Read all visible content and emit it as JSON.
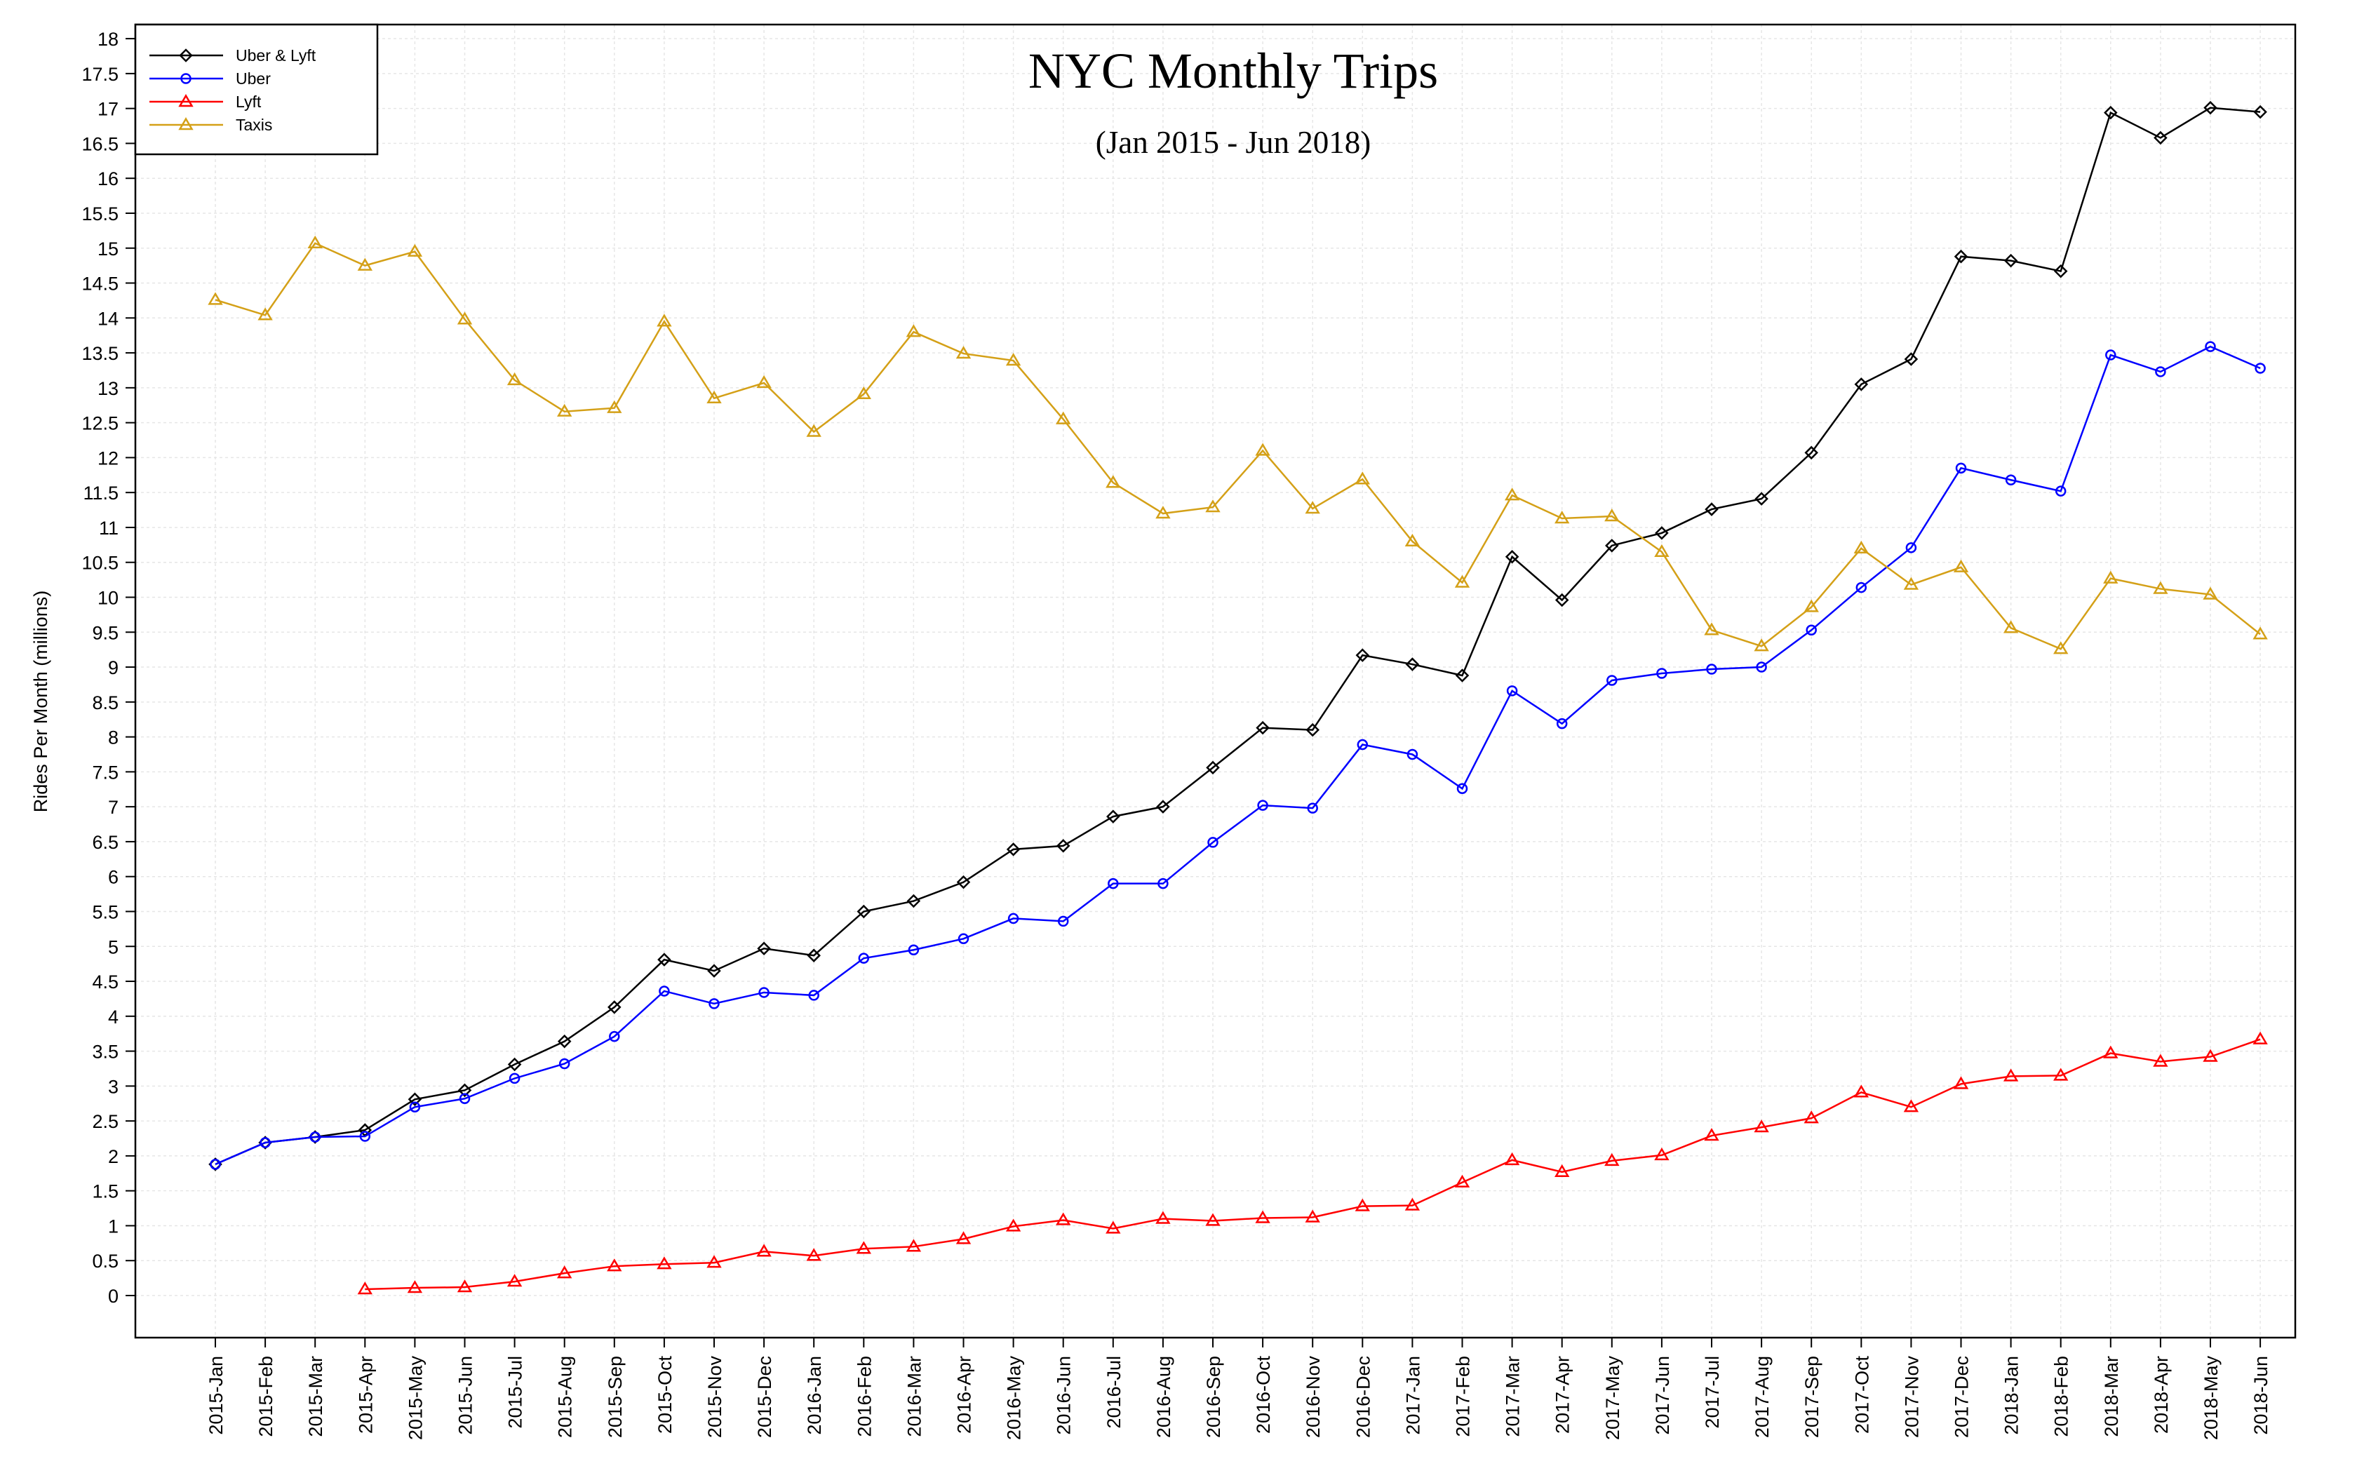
{
  "chart_data": {
    "type": "line",
    "title": "NYC Monthly Trips",
    "subtitle": "(Jan 2015 - Jun 2018)",
    "xlabel": "",
    "ylabel": "Rides Per Month (millions)",
    "ylim": [
      -0.6,
      18.2
    ],
    "yticks": [
      0,
      0.5,
      1,
      1.5,
      2,
      2.5,
      3,
      3.5,
      4,
      4.5,
      5,
      5.5,
      6,
      6.5,
      7,
      7.5,
      8,
      8.5,
      9,
      9.5,
      10,
      10.5,
      11,
      11.5,
      12,
      12.5,
      13,
      13.5,
      14,
      14.5,
      15,
      15.5,
      16,
      16.5,
      17,
      17.5,
      18
    ],
    "grid": true,
    "legend_position": "top-left",
    "categories": [
      "2015-Jan",
      "2015-Feb",
      "2015-Mar",
      "2015-Apr",
      "2015-May",
      "2015-Jun",
      "2015-Jul",
      "2015-Aug",
      "2015-Sep",
      "2015-Oct",
      "2015-Nov",
      "2015-Dec",
      "2016-Jan",
      "2016-Feb",
      "2016-Mar",
      "2016-Apr",
      "2016-May",
      "2016-Jun",
      "2016-Jul",
      "2016-Aug",
      "2016-Sep",
      "2016-Oct",
      "2016-Nov",
      "2016-Dec",
      "2017-Jan",
      "2017-Feb",
      "2017-Mar",
      "2017-Apr",
      "2017-May",
      "2017-Jun",
      "2017-Jul",
      "2017-Aug",
      "2017-Sep",
      "2017-Oct",
      "2017-Nov",
      "2017-Dec",
      "2018-Jan",
      "2018-Feb",
      "2018-Mar",
      "2018-Apr",
      "2018-May",
      "2018-Jun"
    ],
    "series": [
      {
        "name": "Uber & Lyft",
        "color": "#000000",
        "marker": "diamond",
        "values": [
          1.88,
          2.19,
          2.27,
          2.37,
          2.81,
          2.94,
          3.31,
          3.64,
          4.13,
          4.81,
          4.65,
          4.97,
          4.87,
          5.5,
          5.65,
          5.92,
          6.39,
          6.44,
          6.86,
          7.0,
          7.56,
          8.13,
          8.1,
          9.17,
          9.04,
          8.88,
          10.58,
          9.96,
          10.74,
          10.92,
          11.26,
          11.41,
          12.07,
          13.05,
          13.41,
          14.88,
          14.82,
          14.67,
          16.94,
          16.58,
          17.01,
          16.95
        ]
      },
      {
        "name": "Uber",
        "color": "#0000ff",
        "marker": "circle",
        "values": [
          1.88,
          2.19,
          2.27,
          2.28,
          2.7,
          2.82,
          3.11,
          3.32,
          3.71,
          4.36,
          4.18,
          4.34,
          4.3,
          4.83,
          4.95,
          5.11,
          5.4,
          5.36,
          5.9,
          5.9,
          6.49,
          7.02,
          6.98,
          7.89,
          7.75,
          7.26,
          8.66,
          8.19,
          8.81,
          8.91,
          8.97,
          9.0,
          9.53,
          10.14,
          10.71,
          11.85,
          11.68,
          11.52,
          13.47,
          13.23,
          13.59,
          13.28
        ]
      },
      {
        "name": "Lyft",
        "color": "#ff0000",
        "marker": "triangle",
        "values": [
          null,
          null,
          null,
          0.09,
          0.11,
          0.12,
          0.2,
          0.32,
          0.42,
          0.45,
          0.47,
          0.63,
          0.57,
          0.67,
          0.7,
          0.81,
          0.99,
          1.08,
          0.96,
          1.1,
          1.07,
          1.11,
          1.12,
          1.28,
          1.29,
          1.62,
          1.94,
          1.77,
          1.93,
          2.01,
          2.29,
          2.41,
          2.54,
          2.91,
          2.7,
          3.03,
          3.14,
          3.15,
          3.47,
          3.35,
          3.42,
          3.67
        ]
      },
      {
        "name": "Taxis",
        "color": "#d4a017",
        "marker": "triangle",
        "values": [
          14.26,
          14.04,
          15.07,
          14.75,
          14.95,
          13.98,
          13.11,
          12.66,
          12.71,
          13.95,
          12.85,
          13.07,
          12.37,
          12.91,
          13.8,
          13.49,
          13.39,
          12.55,
          11.64,
          11.2,
          11.29,
          12.1,
          11.27,
          11.69,
          10.8,
          10.21,
          11.46,
          11.13,
          11.16,
          10.65,
          9.53,
          9.3,
          9.86,
          10.7,
          10.18,
          10.43,
          9.56,
          9.26,
          10.27,
          10.12,
          10.04,
          9.47
        ]
      }
    ]
  }
}
